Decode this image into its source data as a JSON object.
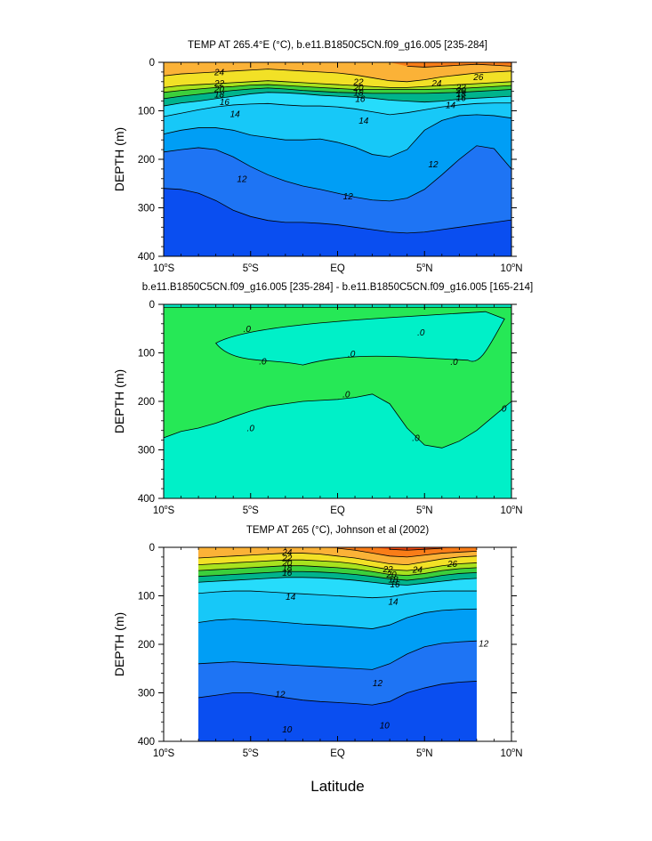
{
  "chart_data": [
    {
      "type": "contour",
      "title": "TEMP AT 265.4°E (°C), b.e11.B1850C5CN.f09_g16.005 [235-284]",
      "ylabel": "DEPTH (m)",
      "xlabel": "",
      "xlim": [
        -10,
        10
      ],
      "ylim": [
        400,
        0
      ],
      "y_inverted": true,
      "x_ticks": [
        -10,
        -5,
        0,
        5,
        10
      ],
      "x_tick_labels": [
        "10°S",
        "5°S",
        "EQ",
        "5°N",
        "10°N"
      ],
      "y_ticks": [
        0,
        100,
        200,
        300,
        400
      ],
      "y_tick_labels": [
        "0",
        "100",
        "200",
        "300",
        "400"
      ],
      "contour_labels": [
        "24",
        "22",
        "20",
        "18",
        "16",
        "14",
        "14",
        "12",
        "12",
        "12",
        "22",
        "20",
        "18",
        "16",
        "24",
        "26",
        "22",
        "20",
        "18",
        "16",
        "14"
      ],
      "data_xlim": [
        -10,
        10
      ],
      "levels": [
        {
          "value": 10,
          "color": "#0a4ef0",
          "depth": [
            330,
            340,
            355,
            370,
            385,
            400,
            400,
            400,
            400,
            400,
            400,
            400,
            400,
            400,
            400,
            400,
            400,
            400,
            400,
            400,
            400
          ]
        },
        {
          "value": 11,
          "color": "#1e74f4",
          "depth": [
            260,
            262,
            270,
            285,
            305,
            318,
            326,
            330,
            330,
            332,
            335,
            340,
            345,
            350,
            352,
            350,
            345,
            340,
            335,
            330,
            325
          ]
        },
        {
          "value": 12,
          "color": "#009ef5",
          "depth": [
            185,
            180,
            176,
            180,
            195,
            215,
            232,
            245,
            255,
            262,
            270,
            278,
            284,
            286,
            280,
            262,
            232,
            200,
            172,
            178,
            220
          ]
        },
        {
          "value": 13,
          "color": "#17c8f8",
          "depth": [
            148,
            140,
            135,
            135,
            140,
            150,
            155,
            160,
            160,
            158,
            165,
            175,
            190,
            195,
            180,
            140,
            120,
            110,
            108,
            110,
            115
          ]
        },
        {
          "value": 14,
          "color": "#26dcfb",
          "depth": [
            112,
            105,
            98,
            92,
            88,
            86,
            85,
            88,
            90,
            90,
            92,
            96,
            102,
            108,
            104,
            98,
            92,
            88,
            85,
            84,
            84
          ]
        },
        {
          "value": 16,
          "color": "#00b48c",
          "depth": [
            90,
            84,
            80,
            75,
            70,
            65,
            62,
            63,
            65,
            68,
            70,
            72,
            74,
            78,
            80,
            82,
            80,
            76,
            74,
            72,
            70
          ]
        },
        {
          "value": 18,
          "color": "#3ccf3c",
          "depth": [
            75,
            70,
            66,
            62,
            58,
            55,
            53,
            55,
            58,
            60,
            62,
            63,
            64,
            64,
            64,
            64,
            63,
            62,
            60,
            58,
            56
          ]
        },
        {
          "value": 20,
          "color": "#a8e21e",
          "depth": [
            62,
            58,
            55,
            52,
            50,
            47,
            46,
            48,
            50,
            52,
            54,
            56,
            56,
            56,
            56,
            56,
            55,
            54,
            52,
            50,
            48
          ]
        },
        {
          "value": 22,
          "color": "#f2e126",
          "depth": [
            52,
            48,
            46,
            44,
            42,
            40,
            38,
            40,
            42,
            44,
            46,
            48,
            50,
            52,
            52,
            50,
            48,
            46,
            44,
            42,
            40
          ]
        },
        {
          "value": 24,
          "color": "#fbb237",
          "depth": [
            28,
            24,
            22,
            20,
            18,
            16,
            14,
            16,
            18,
            20,
            22,
            26,
            32,
            38,
            40,
            36,
            30,
            26,
            22,
            20,
            18
          ]
        },
        {
          "value": 26,
          "color": "#f97d18",
          "depth": [
            0,
            0,
            0,
            0,
            0,
            0,
            0,
            0,
            0,
            0,
            0,
            0,
            0,
            0,
            8,
            10,
            8,
            6,
            4,
            6,
            8
          ]
        },
        {
          "value": 28,
          "color": "#f24a10",
          "depth": [
            0,
            0,
            0,
            0,
            0,
            0,
            0,
            0,
            0,
            0,
            0,
            0,
            0,
            0,
            0,
            0,
            0,
            0,
            0,
            0,
            2
          ]
        }
      ]
    },
    {
      "type": "contour",
      "title": "b.e11.B1850C5CN.f09_g16.005 [235-284] - b.e11.B1850C5CN.f09_g16.005 [165-214]",
      "ylabel": "DEPTH (m)",
      "xlabel": "",
      "xlim": [
        -10,
        10
      ],
      "ylim": [
        400,
        0
      ],
      "y_inverted": true,
      "x_ticks": [
        -10,
        -5,
        0,
        5,
        10
      ],
      "x_tick_labels": [
        "10°S",
        "5°S",
        "EQ",
        "5°N",
        "10°N"
      ],
      "y_ticks": [
        0,
        100,
        200,
        300,
        400
      ],
      "y_tick_labels": [
        "0",
        "100",
        "200",
        "300",
        "400"
      ],
      "contour_labels": [
        ".0",
        ".0",
        ".0",
        ".0",
        ".0",
        ".0",
        ".0",
        ".0",
        ".0"
      ],
      "data_xlim": [
        -10,
        10
      ],
      "levels": [
        {
          "value": -0.1,
          "color": "#00f0c8",
          "depth": [
            0,
            0,
            0,
            0,
            0,
            0,
            0,
            0,
            0,
            0,
            0,
            0,
            0,
            0,
            0,
            0,
            0,
            0,
            0,
            0,
            0
          ]
        },
        {
          "value": 0.1,
          "color": "#26e856",
          "depth": [
            8,
            8,
            8,
            8,
            8,
            8,
            8,
            8,
            8,
            8,
            8,
            8,
            8,
            8,
            8,
            8,
            8,
            8,
            8,
            8,
            12
          ]
        }
      ],
      "regions": [
        {
          "value": "<0",
          "color": "#00f0c8",
          "top": [
            6,
            6,
            6,
            6,
            6,
            6,
            6,
            6,
            6,
            6,
            6,
            6,
            6,
            6,
            6,
            6,
            6,
            6,
            6,
            6,
            6
          ],
          "bottom": [
            275,
            262,
            255,
            245,
            232,
            220,
            210,
            205,
            200,
            198,
            196,
            192,
            185,
            205,
            255,
            290,
            296,
            282,
            260,
            230,
            200
          ]
        },
        {
          "value": "<0",
          "color": "#00f0c8",
          "top": [
            400,
            400,
            400,
            400,
            400,
            400,
            400,
            400,
            400,
            400,
            400,
            400,
            400,
            400,
            400,
            400,
            400,
            400,
            400,
            400,
            400
          ],
          "bottom": [
            400,
            400,
            400,
            400,
            400,
            400,
            400,
            400,
            400,
            400,
            400,
            400,
            400,
            400,
            400,
            400,
            400,
            400,
            400,
            400,
            400
          ]
        }
      ]
    },
    {
      "type": "contour",
      "title": "TEMP AT 265 (°C), Johnson et al (2002)",
      "ylabel": "DEPTH (m)",
      "xlabel": "Latitude",
      "xlim": [
        -10,
        10
      ],
      "ylim": [
        400,
        0
      ],
      "y_inverted": true,
      "x_ticks": [
        -10,
        -5,
        0,
        5,
        10
      ],
      "x_tick_labels": [
        "10°S",
        "5°S",
        "EQ",
        "5°N",
        "10°N"
      ],
      "y_ticks": [
        0,
        100,
        200,
        300,
        400
      ],
      "y_tick_labels": [
        "0",
        "100",
        "200",
        "300",
        "400"
      ],
      "contour_labels": [
        "24",
        "22",
        "20",
        "18",
        "16",
        "14",
        "14",
        "12",
        "12",
        "12",
        "10",
        "10",
        "22",
        "20",
        "18",
        "16",
        "24",
        "26"
      ],
      "data_xlim": [
        -8,
        8
      ],
      "levels": [
        {
          "value": 10,
          "color": "#0a4ef0",
          "depth": [
            385,
            382,
            378,
            372,
            368,
            366,
            365,
            366,
            368,
            370,
            372,
            370,
            366,
            362,
            360,
            360,
            360
          ]
        },
        {
          "value": 11,
          "color": "#1e74f4",
          "depth": [
            310,
            305,
            300,
            300,
            305,
            310,
            315,
            318,
            320,
            322,
            325,
            318,
            300,
            290,
            282,
            278,
            276
          ]
        },
        {
          "value": 12,
          "color": "#009ef5",
          "depth": [
            240,
            238,
            236,
            238,
            240,
            242,
            244,
            246,
            248,
            250,
            252,
            240,
            220,
            205,
            198,
            195,
            193
          ]
        },
        {
          "value": 13,
          "color": "#17c8f8",
          "depth": [
            155,
            150,
            148,
            150,
            152,
            155,
            158,
            160,
            162,
            165,
            168,
            160,
            145,
            135,
            130,
            128,
            127
          ]
        },
        {
          "value": 14,
          "color": "#26dcfb",
          "depth": [
            95,
            92,
            90,
            90,
            92,
            94,
            96,
            98,
            100,
            102,
            104,
            102,
            96,
            92,
            90,
            90,
            90
          ]
        },
        {
          "value": 16,
          "color": "#00b48c",
          "depth": [
            72,
            70,
            68,
            66,
            64,
            62,
            62,
            63,
            65,
            68,
            72,
            76,
            78,
            74,
            70,
            66,
            64
          ]
        },
        {
          "value": 18,
          "color": "#3ccf3c",
          "depth": [
            60,
            58,
            56,
            54,
            52,
            50,
            50,
            51,
            53,
            56,
            60,
            65,
            68,
            64,
            58,
            54,
            52
          ]
        },
        {
          "value": 20,
          "color": "#a8e21e",
          "depth": [
            48,
            46,
            44,
            42,
            40,
            38,
            38,
            40,
            42,
            45,
            50,
            56,
            58,
            54,
            48,
            44,
            42
          ]
        },
        {
          "value": 22,
          "color": "#f2e126",
          "depth": [
            36,
            34,
            32,
            30,
            28,
            26,
            26,
            28,
            30,
            34,
            40,
            46,
            48,
            44,
            38,
            34,
            32
          ]
        },
        {
          "value": 24,
          "color": "#fbb237",
          "depth": [
            22,
            20,
            18,
            16,
            14,
            12,
            12,
            14,
            18,
            22,
            28,
            34,
            36,
            30,
            24,
            20,
            18
          ]
        },
        {
          "value": 26,
          "color": "#f97d18",
          "depth": [
            0,
            0,
            0,
            0,
            0,
            0,
            0,
            0,
            2,
            6,
            12,
            18,
            20,
            16,
            12,
            10,
            8
          ]
        },
        {
          "value": 28,
          "color": "#f24a10",
          "depth": [
            0,
            0,
            0,
            0,
            0,
            0,
            0,
            0,
            0,
            0,
            0,
            4,
            6,
            4,
            2,
            0,
            0
          ]
        }
      ]
    }
  ]
}
